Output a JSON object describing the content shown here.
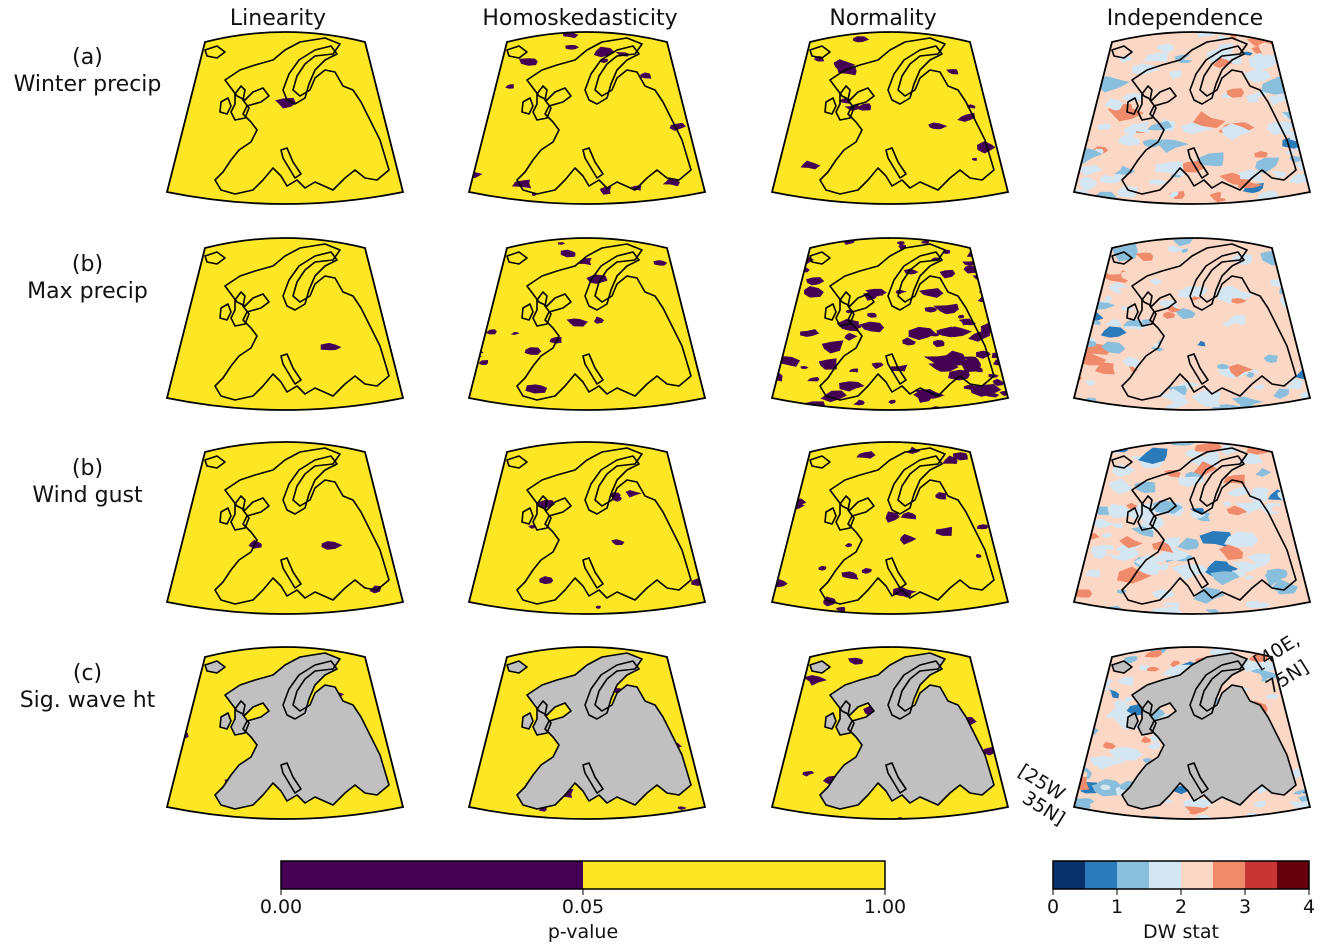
{
  "columns": [
    "Linearity",
    "Homoskedasticity",
    "Normality",
    "Independence"
  ],
  "rows": [
    {
      "tag": "(a)",
      "name": "Winter precip"
    },
    {
      "tag": "(b)",
      "name": "Max precip"
    },
    {
      "tag": "(b)",
      "name": "Wind gust"
    },
    {
      "tag": "(c)",
      "name": "Sig. wave ht"
    }
  ],
  "corners": {
    "ne": "[40E,",
    "ne2": "75N]",
    "sw": "[25W",
    "sw2": "35N]"
  },
  "pvalue_colorbar": {
    "label": "p-value",
    "ticks": [
      "0.00",
      "0.05",
      "1.00"
    ],
    "colors": [
      "#440154",
      "#fde725"
    ]
  },
  "dw_colorbar": {
    "label": "DW stat",
    "ticks": [
      "0",
      "1",
      "2",
      "3",
      "4"
    ],
    "colors": [
      "#08306b",
      "#2b7bba",
      "#89bedc",
      "#d5e6f3",
      "#fbd7c5",
      "#ef8a6a",
      "#c83535",
      "#67000d"
    ]
  },
  "colors": {
    "yes": "#fde725",
    "no": "#440154",
    "land_mask": "#c0c0c0",
    "coast": "#000000"
  },
  "significant_fraction": [
    [
      0.01,
      0.1,
      0.08,
      null
    ],
    [
      0.02,
      0.08,
      0.45,
      null
    ],
    [
      0.02,
      0.05,
      0.15,
      null
    ],
    [
      0.04,
      0.06,
      0.08,
      null
    ]
  ]
}
